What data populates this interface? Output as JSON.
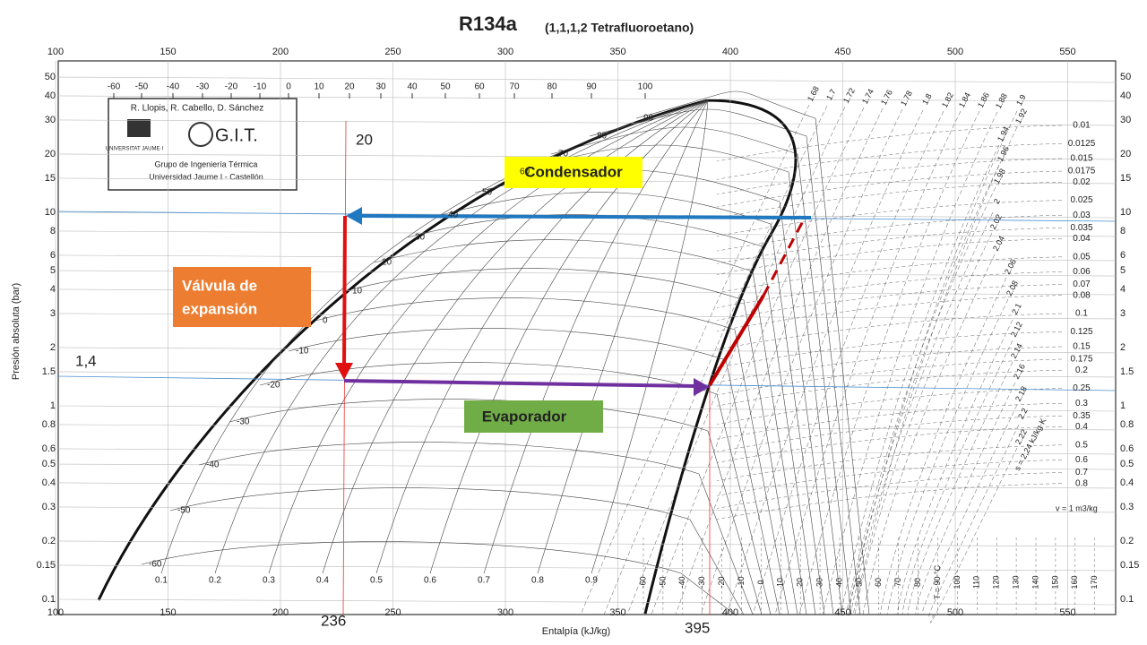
{
  "header": {
    "title": "R134a",
    "subtitle": "(1,1,1,2 Tetrafluoroetano)"
  },
  "credits": {
    "authors": "R. Llopis, R. Cabello, D. Sánchez",
    "university_logo": "UNIVERSITAT JAUME·I",
    "group_logo": "G.I.T.",
    "group": "Grupo de Ingeniería Térmica",
    "university": "Universidad Jaume I - Castellón"
  },
  "axes": {
    "x_label": "Entalpía (kJ/kg)",
    "x_ticks": [
      100,
      150,
      200,
      250,
      300,
      350,
      400,
      450,
      500,
      550
    ],
    "y_label": "Presión absoluta (bar)",
    "y_ticks": [
      0.1,
      0.15,
      0.2,
      0.3,
      0.4,
      0.5,
      0.6,
      0.8,
      1,
      1.5,
      2,
      3,
      4,
      5,
      6,
      8,
      10,
      15,
      20,
      30,
      40,
      50
    ],
    "top_temperature_ticks": [
      -60,
      -50,
      -40,
      -30,
      -20,
      -10,
      0,
      10,
      20,
      30,
      40,
      50,
      60,
      70,
      80,
      90,
      100
    ]
  },
  "isotherm_labels": [
    -60,
    -50,
    -40,
    -30,
    -20,
    -10,
    0,
    10,
    20,
    30,
    40,
    50,
    60,
    70,
    80,
    90
  ],
  "quality_labels": [
    0.1,
    0.2,
    0.3,
    0.4,
    0.5,
    0.6,
    0.7,
    0.8,
    0.9
  ],
  "bottom_temperature_labels": [
    -60,
    -50,
    -40,
    -30,
    -20,
    -10,
    0,
    10,
    20,
    30,
    40,
    50,
    60,
    70,
    80,
    {
      "value": 90,
      "label": "T = 90 °C"
    },
    100,
    110,
    120,
    130,
    140,
    150,
    160,
    170
  ],
  "entropy_labels": [
    1.68,
    1.7,
    1.72,
    1.74,
    1.76,
    1.78,
    1.8,
    1.82,
    1.84,
    1.86,
    1.88,
    1.9,
    1.92,
    1.94,
    1.96,
    1.98,
    2,
    2.02,
    2.04,
    2.06,
    2.08,
    2.1,
    2.12,
    2.14,
    2.16,
    2.18,
    2.2,
    2.22
  ],
  "entropy_unit": "s = 2,24 kJ/kg·K",
  "volume_labels": [
    0.01,
    0.0125,
    0.015,
    0.0175,
    0.02,
    0.025,
    0.03,
    0.035,
    0.04,
    0.05,
    0.06,
    0.07,
    0.08,
    0.1,
    0.125,
    0.15,
    0.175,
    0.2,
    0.25,
    0.3,
    0.35,
    0.4,
    0.5,
    0.6,
    0.7,
    0.8
  ],
  "volume_unit": "v = 1 m3/kg",
  "annotations": {
    "condenser": "Condensador",
    "valve": [
      "Válvula de",
      "expansión"
    ],
    "evaporator": "Evaporador",
    "condensing_temperature": "20",
    "evaporating_pressure": "1,4",
    "h_liquid": "236",
    "h_vapor": "395"
  }
}
